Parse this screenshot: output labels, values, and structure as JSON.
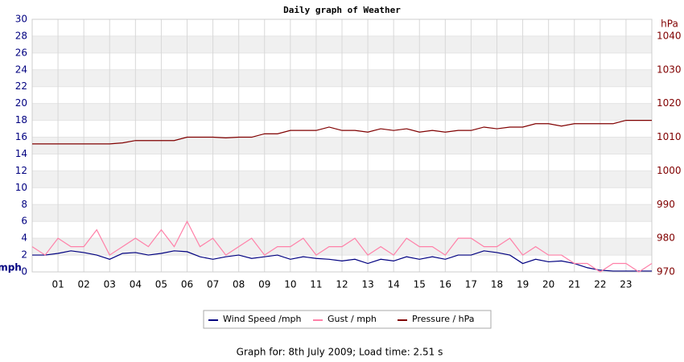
{
  "chart_data": {
    "type": "line",
    "title": "Daily graph of Weather",
    "ylabel": "mph",
    "y2label": "hPa",
    "caption": "Graph for: 8th July 2009; Load time: 2.51 s",
    "x": [
      0,
      0.5,
      1,
      1.5,
      2,
      2.5,
      3,
      3.5,
      4,
      4.5,
      5,
      5.5,
      6,
      6.5,
      7,
      7.5,
      8,
      8.5,
      9,
      9.5,
      10,
      10.5,
      11,
      11.5,
      12,
      12.5,
      13,
      13.5,
      14,
      14.5,
      15,
      15.5,
      16,
      16.5,
      17,
      17.5,
      18,
      18.5,
      19,
      19.5,
      20,
      20.5,
      21,
      21.5,
      22,
      22.5,
      23,
      23.5,
      24
    ],
    "series": [
      {
        "name": "Wind Speed /mph",
        "color": "#000080",
        "values": [
          2,
          2,
          2.2,
          2.5,
          2.3,
          2,
          1.5,
          2.2,
          2.3,
          2,
          2.2,
          2.5,
          2.4,
          1.8,
          1.5,
          1.8,
          2,
          1.6,
          1.8,
          2,
          1.5,
          1.8,
          1.6,
          1.5,
          1.3,
          1.5,
          1,
          1.5,
          1.3,
          1.8,
          1.5,
          1.8,
          1.5,
          2,
          2,
          2.5,
          2.3,
          2,
          1,
          1.5,
          1.2,
          1.3,
          1,
          0.5,
          0.2,
          0.1,
          0.1,
          0.1,
          0.1
        ]
      },
      {
        "name": "Gust / mph",
        "color": "#ff80a8",
        "values": [
          3,
          2,
          4,
          3,
          3,
          5,
          2,
          3,
          4,
          3,
          5,
          3,
          6,
          3,
          4,
          2,
          3,
          4,
          2,
          3,
          3,
          4,
          2,
          3,
          3,
          4,
          2,
          3,
          2,
          4,
          3,
          3,
          2,
          4,
          4,
          3,
          3,
          4,
          2,
          3,
          2,
          2,
          1,
          1,
          0,
          1,
          1,
          0,
          1
        ]
      },
      {
        "name": "Pressure / hPa",
        "color": "#800000",
        "axis": "y2",
        "values": [
          1008,
          1008,
          1008,
          1008,
          1008,
          1008,
          1008,
          1008.3,
          1009,
          1009,
          1009,
          1009,
          1010,
          1010,
          1010,
          1009.8,
          1010,
          1010,
          1011,
          1011,
          1012,
          1012,
          1012,
          1013,
          1012,
          1012,
          1011.5,
          1012.5,
          1012,
          1012.5,
          1011.5,
          1012,
          1011.5,
          1012,
          1012,
          1013,
          1012.5,
          1013,
          1013,
          1014,
          1014,
          1013.3,
          1014,
          1014,
          1014,
          1014,
          1015,
          1015,
          1015
        ]
      }
    ],
    "xlim": [
      0,
      24
    ],
    "xticks": [
      {
        "value": 1,
        "label": "01"
      },
      {
        "value": 2,
        "label": "02"
      },
      {
        "value": 3,
        "label": "03"
      },
      {
        "value": 4,
        "label": "04"
      },
      {
        "value": 5,
        "label": "05"
      },
      {
        "value": 6,
        "label": "06"
      },
      {
        "value": 7,
        "label": "07"
      },
      {
        "value": 8,
        "label": "08"
      },
      {
        "value": 9,
        "label": "09"
      },
      10,
      11,
      12,
      13,
      14,
      15,
      16,
      17,
      18,
      19,
      20,
      21,
      22,
      23
    ],
    "ylim": [
      0,
      30
    ],
    "yticks": [
      0,
      2,
      4,
      6,
      8,
      10,
      12,
      14,
      16,
      18,
      20,
      22,
      24,
      26,
      28,
      30
    ],
    "y2lim": [
      970,
      1045
    ],
    "y2ticks": [
      970,
      980,
      990,
      1000,
      1010,
      1020,
      1030,
      1040
    ],
    "grid": true
  }
}
